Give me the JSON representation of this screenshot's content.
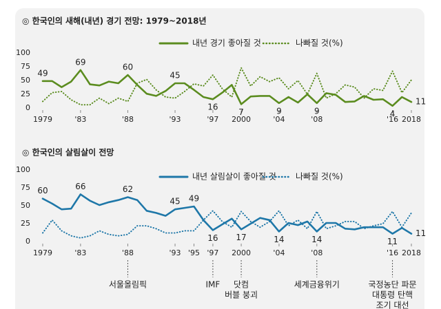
{
  "chart_data": [
    {
      "type": "line",
      "title": "◎  한국인의 새해(내년) 경기 전망: 1979~2018년",
      "x": [
        1979,
        1980,
        1981,
        1982,
        1983,
        1984,
        1985,
        1986,
        1987,
        1988,
        1989,
        1990,
        1991,
        1992,
        1993,
        1994,
        1995,
        1996,
        1997,
        1998,
        1999,
        2000,
        2001,
        2002,
        2003,
        2004,
        2005,
        2006,
        2007,
        2008,
        2009,
        2010,
        2011,
        2012,
        2013,
        2014,
        2015,
        2016,
        2017,
        2018
      ],
      "series": [
        {
          "name": "내년 경기 좋아질 것",
          "color": "#5b8c1f",
          "style": "solid",
          "values": [
            49,
            49,
            38,
            48,
            69,
            43,
            41,
            48,
            45,
            60,
            42,
            26,
            22,
            31,
            45,
            45,
            33,
            20,
            16,
            28,
            42,
            7,
            21,
            22,
            22,
            9,
            20,
            10,
            25,
            9,
            27,
            24,
            11,
            12,
            22,
            15,
            16,
            4,
            20,
            11
          ],
          "value_labels": [
            "49",
            null,
            null,
            null,
            "69",
            null,
            null,
            null,
            null,
            "60",
            null,
            null,
            null,
            null,
            "45",
            null,
            null,
            null,
            "16",
            null,
            null,
            "7",
            null,
            null,
            null,
            "9",
            null,
            null,
            null,
            "9",
            null,
            null,
            null,
            null,
            null,
            null,
            null,
            "4",
            null,
            "11"
          ]
        },
        {
          "name": "나빠질 것(%)",
          "color": "#5b8c1f",
          "style": "dotted",
          "values": [
            12,
            28,
            30,
            15,
            6,
            6,
            18,
            8,
            18,
            12,
            45,
            52,
            33,
            20,
            18,
            30,
            44,
            40,
            60,
            35,
            20,
            73,
            40,
            57,
            48,
            55,
            35,
            50,
            25,
            63,
            18,
            26,
            42,
            38,
            18,
            35,
            32,
            67,
            28,
            51
          ]
        }
      ],
      "xlim": [
        1979,
        2018
      ],
      "xticks": [
        1979,
        {
          "value": 1983,
          "label": "'83"
        },
        {
          "value": 1988,
          "label": "'88"
        },
        {
          "value": 1993,
          "label": "'93"
        },
        {
          "value": 1997,
          "label": "'97"
        },
        2000,
        {
          "value": 2004,
          "label": "'04"
        },
        {
          "value": 2008,
          "label": "'08"
        },
        {
          "value": 2016,
          "label": "'16"
        },
        2018
      ],
      "ylim": [
        0,
        100
      ],
      "yticks": [
        0,
        25,
        50,
        75,
        100
      ],
      "grid": false
    },
    {
      "type": "line",
      "title": "◎  한국인의 살림살이 전망",
      "x": [
        1979,
        1980,
        1981,
        1982,
        1983,
        1984,
        1985,
        1986,
        1987,
        1988,
        1989,
        1990,
        1991,
        1992,
        1993,
        1994,
        1995,
        1996,
        1997,
        1998,
        1999,
        2000,
        2001,
        2002,
        2003,
        2004,
        2005,
        2006,
        2007,
        2008,
        2009,
        2010,
        2011,
        2012,
        2013,
        2014,
        2015,
        2016,
        2017,
        2018
      ],
      "series": [
        {
          "name": "내년 살림살이 좋아질 것",
          "color": "#1e77a8",
          "style": "solid",
          "values": [
            60,
            53,
            45,
            46,
            66,
            57,
            51,
            55,
            58,
            62,
            58,
            43,
            40,
            36,
            45,
            47,
            49,
            30,
            16,
            24,
            32,
            17,
            25,
            33,
            30,
            14,
            26,
            23,
            28,
            14,
            26,
            26,
            18,
            17,
            20,
            20,
            20,
            11,
            19,
            11
          ],
          "value_labels": [
            "60",
            null,
            null,
            null,
            "66",
            null,
            null,
            null,
            null,
            "62",
            null,
            null,
            null,
            null,
            "45",
            null,
            "49",
            null,
            "16",
            null,
            null,
            "17",
            null,
            null,
            null,
            "14",
            null,
            null,
            null,
            "14",
            null,
            null,
            null,
            null,
            null,
            null,
            null,
            "11",
            null,
            "11"
          ]
        },
        {
          "name": "나빠질 것(%)",
          "color": "#1e77a8",
          "style": "dotted",
          "values": [
            12,
            30,
            15,
            8,
            5,
            8,
            15,
            10,
            8,
            10,
            22,
            22,
            18,
            12,
            12,
            15,
            15,
            30,
            43,
            28,
            20,
            42,
            28,
            20,
            28,
            43,
            22,
            30,
            18,
            42,
            18,
            22,
            28,
            28,
            18,
            22,
            25,
            42,
            20,
            40
          ]
        }
      ],
      "xlim": [
        1979,
        2018
      ],
      "xticks": [
        1979,
        {
          "value": 1983,
          "label": "'83"
        },
        {
          "value": 1988,
          "label": "'88"
        },
        {
          "value": 1993,
          "label": "'93"
        },
        {
          "value": 1995,
          "label": "'95"
        },
        {
          "value": 1997,
          "label": "'97"
        },
        2000,
        {
          "value": 2004,
          "label": "'04"
        },
        {
          "value": 2008,
          "label": "'08"
        },
        {
          "value": 2016,
          "label": "'16"
        },
        2018
      ],
      "ylim": [
        0,
        100
      ],
      "yticks": [
        0,
        25,
        50,
        75,
        100
      ],
      "grid": false,
      "annotations": [
        {
          "x": 1988,
          "lines": [
            "서울올림픽"
          ]
        },
        {
          "x": 1997,
          "lines": [
            "IMF"
          ]
        },
        {
          "x": 2000,
          "lines": [
            "닷컴",
            "버블 붕괴"
          ]
        },
        {
          "x": 2008,
          "lines": [
            "세계금융위기"
          ]
        },
        {
          "x": 2016,
          "lines": [
            "국정농단 파문",
            "대통령 탄핵",
            "조기 대선"
          ]
        }
      ]
    }
  ]
}
